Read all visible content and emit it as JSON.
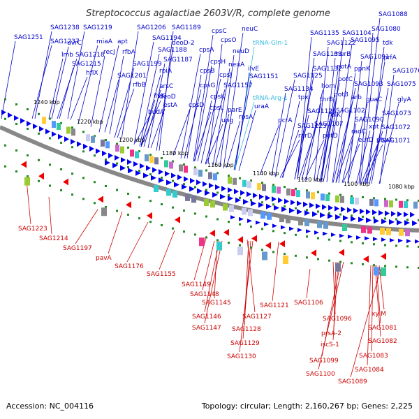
{
  "title": "Streptococcus agalactiae 2603V/R, complete genome",
  "footer": {
    "accession": "Accession: NC_004116",
    "topology": "Topology: circular; Length: 2,160,267 bp; Genes: 2,225"
  },
  "colors": {
    "forward_label": "#0000cc",
    "rna_label": "#33bbdd",
    "reverse_label": "#cc0000",
    "backbone": "#888888",
    "forward_arrow": "#0000ee",
    "reverse_arrow": "#ee0000",
    "ticks": "#228822"
  },
  "ticks": [
    "1240 kbp",
    "1220 kbp",
    "1200 kbp",
    "1180 kbp",
    "1160 kbp",
    "1140 kbp",
    "1120 kbp",
    "1100 kbp",
    "1080 kbp"
  ],
  "forward_labels": [
    {
      "t": "SAG1251"
    },
    {
      "t": "SAG1238"
    },
    {
      "t": "SAG1237"
    },
    {
      "t": "lmb"
    },
    {
      "t": "uvrC"
    },
    {
      "t": "SAG1218"
    },
    {
      "t": "SAG1215"
    },
    {
      "t": "SAG1219"
    },
    {
      "t": "miaA"
    },
    {
      "t": "recJ"
    },
    {
      "t": "hflX"
    },
    {
      "t": "apt"
    },
    {
      "t": "rfbA"
    },
    {
      "t": "SAG1206"
    },
    {
      "t": "SAG1199"
    },
    {
      "t": "SAG1201"
    },
    {
      "t": "rfbB"
    },
    {
      "t": "SAG1194"
    },
    {
      "t": "SAG1189"
    },
    {
      "t": "deoD-2"
    },
    {
      "t": "SAG1188"
    },
    {
      "t": "ilvK"
    },
    {
      "t": "SAG1187"
    },
    {
      "t": "rpiA"
    },
    {
      "t": "budA"
    },
    {
      "t": "arsC"
    },
    {
      "t": "deoD"
    },
    {
      "t": "estA"
    },
    {
      "t": "cpsD"
    },
    {
      "t": "cpsA"
    },
    {
      "t": "cpsB"
    },
    {
      "t": "cpsG"
    },
    {
      "t": "cpsC"
    },
    {
      "t": "cpsO"
    },
    {
      "t": "cpsH"
    },
    {
      "t": "cpsJ"
    },
    {
      "t": "cpsK"
    },
    {
      "t": "cpsL"
    },
    {
      "t": "neuC"
    },
    {
      "t": "neuD"
    },
    {
      "t": "neuA"
    },
    {
      "t": "SAG1157"
    },
    {
      "t": "parE"
    },
    {
      "t": "ung"
    },
    {
      "t": "tRNA-Gln-1",
      "rna": true
    },
    {
      "t": "ilvE"
    },
    {
      "t": "SAG1151"
    },
    {
      "t": "tRNA-Arg-1",
      "rna": true
    },
    {
      "t": "rpsA"
    },
    {
      "t": "uraA"
    },
    {
      "t": "pcrA"
    },
    {
      "t": "SAG1135"
    },
    {
      "t": "SAG1133"
    },
    {
      "t": "SAG1132"
    },
    {
      "t": "SAG1134"
    },
    {
      "t": "tpx"
    },
    {
      "t": "SAG1125"
    },
    {
      "t": "SAG1126"
    },
    {
      "t": "SAG1123"
    },
    {
      "t": "rarD"
    },
    {
      "t": "SAG1122"
    },
    {
      "t": "hom"
    },
    {
      "t": "thrB"
    },
    {
      "t": "folK"
    },
    {
      "t": "SAG1107"
    },
    {
      "t": "potD"
    },
    {
      "t": "murB"
    },
    {
      "t": "potA"
    },
    {
      "t": "potC"
    },
    {
      "t": "potB"
    },
    {
      "t": "SAG1104"
    },
    {
      "t": "arb"
    },
    {
      "t": "SAG1102"
    },
    {
      "t": "radC"
    },
    {
      "t": "SAG1095"
    },
    {
      "t": "SAG1091"
    },
    {
      "t": "ppnK"
    },
    {
      "t": "SAG1093"
    },
    {
      "t": "SAG1090"
    },
    {
      "t": "eutD"
    },
    {
      "t": "guaC"
    },
    {
      "t": "xpt"
    },
    {
      "t": "pbuX"
    },
    {
      "t": "SAG1088"
    },
    {
      "t": "SAG1080"
    },
    {
      "t": "tdk"
    },
    {
      "t": "prfA"
    },
    {
      "t": "SAG1076"
    },
    {
      "t": "SAG1075"
    },
    {
      "t": "glyA"
    },
    {
      "t": "SAG1073"
    },
    {
      "t": "SAG1072"
    },
    {
      "t": "SAG1071"
    }
  ],
  "reverse_labels": [
    {
      "t": "SAG1223"
    },
    {
      "t": "SAG1214"
    },
    {
      "t": "SAG1197"
    },
    {
      "t": "pavA"
    },
    {
      "t": "SAG1176"
    },
    {
      "t": "SAG1155"
    },
    {
      "t": "SAG1149"
    },
    {
      "t": "SAG1148"
    },
    {
      "t": "SAG1145"
    },
    {
      "t": "SAG1146"
    },
    {
      "t": "SAG1147"
    },
    {
      "t": "SAG1127"
    },
    {
      "t": "SAG1128"
    },
    {
      "t": "SAG1129"
    },
    {
      "t": "SAG1130"
    },
    {
      "t": "SAG1121"
    },
    {
      "t": "SAG1106"
    },
    {
      "t": "SAG1096"
    },
    {
      "t": "prsA-2"
    },
    {
      "t": "iscS-1"
    },
    {
      "t": "SAG1099"
    },
    {
      "t": "SAG1100"
    },
    {
      "t": "SAG1089"
    },
    {
      "t": "xylM"
    },
    {
      "t": "SAG1081"
    },
    {
      "t": "SAG1082"
    },
    {
      "t": "SAG1083"
    },
    {
      "t": "SAG1084"
    }
  ]
}
